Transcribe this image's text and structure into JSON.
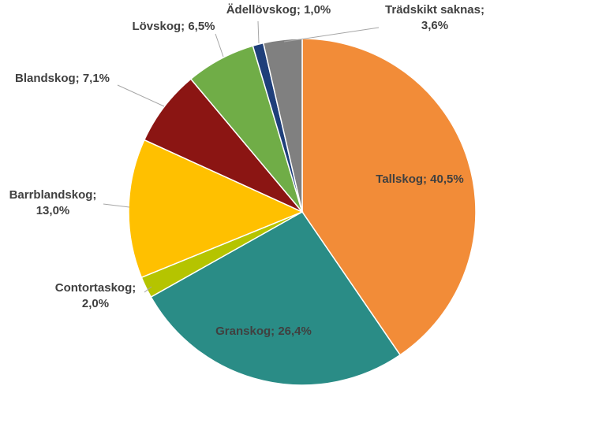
{
  "chart_data": {
    "type": "pie",
    "categories": [
      "Tallskog",
      "Granskog",
      "Contortaskog",
      "Barrblandskog",
      "Blandskog",
      "Lövskog",
      "Ädellövskog",
      "Trädskikt saknas"
    ],
    "values": [
      40.5,
      26.4,
      2.0,
      13.0,
      7.1,
      6.5,
      1.0,
      3.6
    ],
    "colors": [
      "#f28c38",
      "#2a8c86",
      "#b5c400",
      "#ffc000",
      "#8b1513",
      "#70ad47",
      "#1f3f7a",
      "#808080"
    ],
    "labels": [
      [
        "Tallskog; 40,5%"
      ],
      [
        "Granskog; 26,4%"
      ],
      [
        "Contortaskog;",
        "2,0%"
      ],
      [
        "Barrblandskog;",
        "13,0%"
      ],
      [
        "Blandskog; 7,1%"
      ],
      [
        "Lövskog; 6,5%"
      ],
      [
        "Ädellövskog; 1,0%"
      ],
      [
        "Trädskikt saknas;",
        "3,6%"
      ]
    ],
    "start_angle": "12 o'clock",
    "direction": "clockwise"
  }
}
